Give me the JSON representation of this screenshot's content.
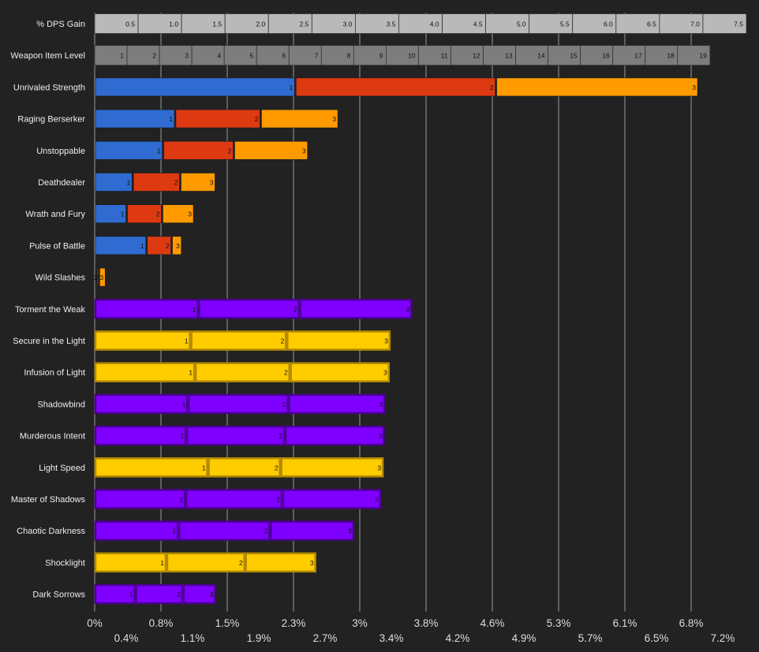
{
  "chart_data": {
    "type": "bar",
    "orientation": "horizontal",
    "stacked": true,
    "xlim": [
      0,
      7.6
    ],
    "scale_rows": [
      {
        "label": "% DPS Gain",
        "ticks": [
          "0.5",
          "1.0",
          "1.5",
          "2.0",
          "2.5",
          "3.0",
          "3.5",
          "4.0",
          "4.5",
          "5.0",
          "5.5",
          "6.0",
          "6.5",
          "7.0",
          "7.5"
        ],
        "color": "#b9b9b9"
      },
      {
        "label": "Weapon Item Level",
        "ticks": [
          "1",
          "2",
          "3",
          "4",
          "5",
          "6",
          "7",
          "8",
          "9",
          "10",
          "11",
          "12",
          "13",
          "14",
          "15",
          "16",
          "17",
          "18",
          "19"
        ],
        "color": "#7d7d7d"
      }
    ],
    "traits": [
      {
        "name": "Unrivaled Strength",
        "group": "trait",
        "ranks": [
          2.32,
          4.64,
          6.98
        ]
      },
      {
        "name": "Raging Berserker",
        "group": "trait",
        "ranks": [
          0.93,
          1.92,
          2.82
        ]
      },
      {
        "name": "Unstoppable",
        "group": "trait",
        "ranks": [
          0.79,
          1.61,
          2.47
        ]
      },
      {
        "name": "Deathdealer",
        "group": "trait",
        "ranks": [
          0.44,
          0.99,
          1.4
        ]
      },
      {
        "name": "Wrath and Fury",
        "group": "trait",
        "ranks": [
          0.37,
          0.78,
          1.15
        ]
      },
      {
        "name": "Pulse of Battle",
        "group": "trait",
        "ranks": [
          0.6,
          0.89,
          1.01
        ]
      },
      {
        "name": "Wild Slashes",
        "group": "trait",
        "ranks": [
          0.02,
          0.05,
          0.13
        ]
      },
      {
        "name": "Torment the Weak",
        "group": "shadow",
        "ranks": [
          1.2,
          2.37,
          3.67
        ]
      },
      {
        "name": "Secure in the Light",
        "group": "light",
        "ranks": [
          1.11,
          2.22,
          3.42
        ]
      },
      {
        "name": "Infusion of Light",
        "group": "light",
        "ranks": [
          1.16,
          2.26,
          3.41
        ]
      },
      {
        "name": "Shadowbind",
        "group": "shadow",
        "ranks": [
          1.08,
          2.24,
          3.36
        ]
      },
      {
        "name": "Murderous Intent",
        "group": "shadow",
        "ranks": [
          1.06,
          2.2,
          3.35
        ]
      },
      {
        "name": "Light Speed",
        "group": "light",
        "ranks": [
          1.31,
          2.15,
          3.34
        ]
      },
      {
        "name": "Master of Shadows",
        "group": "shadow",
        "ranks": [
          1.05,
          2.17,
          3.31
        ]
      },
      {
        "name": "Chaotic Darkness",
        "group": "shadow",
        "ranks": [
          0.97,
          2.03,
          3.0
        ]
      },
      {
        "name": "Shocklight",
        "group": "light",
        "ranks": [
          0.83,
          1.74,
          2.56
        ]
      },
      {
        "name": "Dark Sorrows",
        "group": "shadow",
        "ranks": [
          0.47,
          1.02,
          1.4
        ]
      }
    ],
    "rank_labels": [
      "1",
      "2",
      "3"
    ],
    "colors": {
      "background": "#222222",
      "gridline": "#9a9a9a",
      "trait_ranks": [
        "#2f6bd0",
        "#de3a12",
        "#ff9b00"
      ],
      "shadow": "#8000ff",
      "shadow_border": "#4d0096",
      "light": "#ffcc00",
      "light_border": "#b38b00"
    },
    "xaxis_ticks_upper": [
      "0%",
      "0.8%",
      "1.5%",
      "2.3%",
      "3%",
      "3.8%",
      "4.6%",
      "5.3%",
      "6.1%",
      "6.8%"
    ],
    "xaxis_ticks_lower": [
      "0.4%",
      "1.1%",
      "1.9%",
      "2.7%",
      "3.4%",
      "4.2%",
      "4.9%",
      "5.7%",
      "6.5%",
      "7.2%"
    ],
    "title": "",
    "xlabel": "",
    "ylabel": ""
  }
}
